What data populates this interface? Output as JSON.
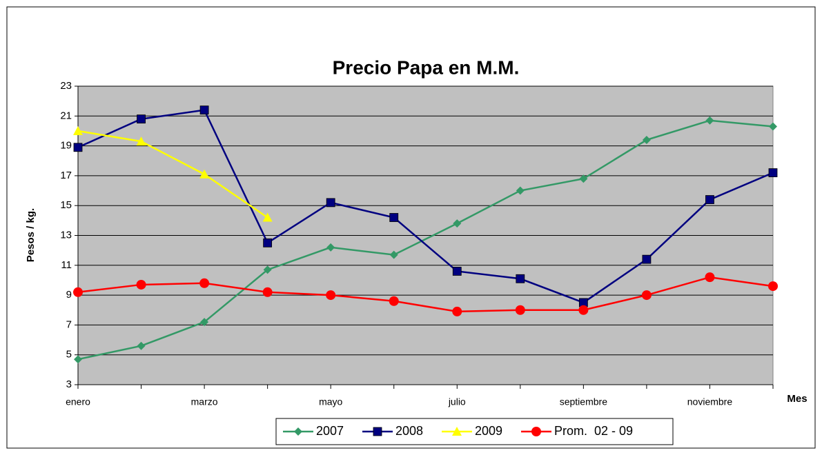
{
  "chart_data": {
    "type": "line",
    "title": "Precio Papa en M.M.",
    "x_label": "Mes",
    "y_label": "Pesos / kg.",
    "categories": [
      "enero",
      null,
      "marzo",
      null,
      "mayo",
      null,
      "julio",
      null,
      "septiembre",
      null,
      "noviembre",
      null
    ],
    "ylim": [
      3,
      23
    ],
    "yticks": [
      3,
      5,
      7,
      9,
      11,
      13,
      15,
      17,
      19,
      21,
      23
    ],
    "grid": true,
    "legend": "bottom",
    "series": [
      {
        "name": "2007",
        "color": "#339966",
        "marker": "diamond",
        "values": [
          4.7,
          5.6,
          7.2,
          10.7,
          12.2,
          11.7,
          13.8,
          16.0,
          16.8,
          19.4,
          20.7,
          20.3
        ]
      },
      {
        "name": "2008",
        "color": "#000080",
        "marker": "square",
        "values": [
          18.9,
          20.8,
          21.4,
          12.5,
          15.2,
          14.2,
          10.6,
          10.1,
          8.5,
          11.4,
          15.4,
          17.2
        ]
      },
      {
        "name": "2009",
        "color": "#ffff00",
        "marker": "triangle",
        "values": [
          20.0,
          19.3,
          17.1,
          14.2,
          null,
          null,
          null,
          null,
          null,
          null,
          null,
          null
        ]
      },
      {
        "name": "Prom.  02 - 09",
        "color": "#ff0000",
        "marker": "circle",
        "values": [
          9.2,
          9.7,
          9.8,
          9.2,
          9.0,
          8.6,
          7.9,
          8.0,
          8.0,
          9.0,
          10.2,
          9.6
        ]
      }
    ]
  }
}
